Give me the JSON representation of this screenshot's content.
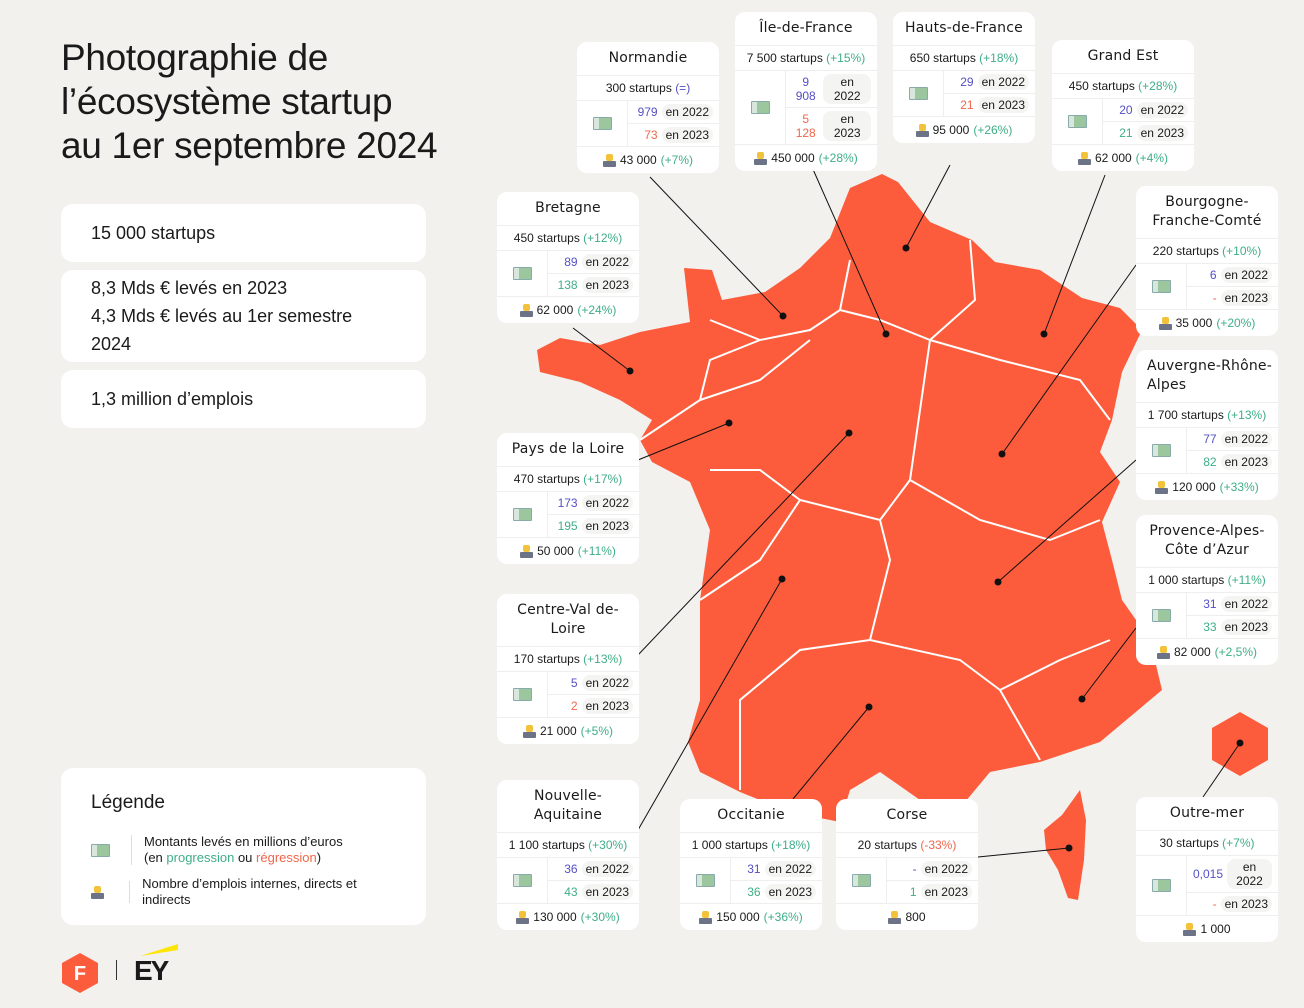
{
  "title_lines": [
    "Photographie de",
    "l’écosystème startup",
    "au 1er septembre 2024"
  ],
  "stats": [
    "15 000 startups",
    "8,3 Mds € levés en 2023",
    "4,3 Mds € levés au 1er semestre 2024",
    "1,3 million d’emplois"
  ],
  "legend": {
    "title": "Légende",
    "money_line1": "Montants levés en millions d’euros",
    "money_open": "(en ",
    "progression": "progression",
    "ou": " ou ",
    "regression": "régression",
    "money_close": ")",
    "jobs": "Nombre d’emplois internes, directs et indirects"
  },
  "colors": {
    "map": "#fd5c3c",
    "progression": "#3fae86",
    "regression": "#f0664a",
    "year_2022": "#5450c4"
  },
  "icons": {
    "money": "money-bill-icon",
    "jobs": "worker-laptop-icon"
  },
  "logos": {
    "left": "FrenchTech / F logo",
    "right": "EY"
  },
  "year_2022_label": "en 2022",
  "year_2023_label": "en 2023",
  "regions": [
    {
      "key": "normandie",
      "name": "Normandie",
      "startups": "300 startups",
      "startups_change": "(=)",
      "startups_trend": "neutral",
      "m2022": "979",
      "m2023": "73",
      "m2023_trend": "down",
      "jobs": "43 000",
      "jobs_change": "(+7%)"
    },
    {
      "key": "ile-de-france",
      "name": "Île-de-France",
      "startups": "7 500 startups",
      "startups_change": "(+15%)",
      "startups_trend": "up",
      "m2022": "9 908",
      "m2023": "5 128",
      "m2023_trend": "down",
      "jobs": "450 000",
      "jobs_change": "(+28%)"
    },
    {
      "key": "hauts-de-france",
      "name": "Hauts-de-France",
      "startups": "650 startups",
      "startups_change": "(+18%)",
      "startups_trend": "up",
      "m2022": "29",
      "m2023": "21",
      "m2023_trend": "down",
      "jobs": "95 000",
      "jobs_change": "(+26%)"
    },
    {
      "key": "grand-est",
      "name": "Grand Est",
      "startups": "450 startups",
      "startups_change": "(+28%)",
      "startups_trend": "up",
      "m2022": "20",
      "m2023": "21",
      "m2023_trend": "up",
      "jobs": "62 000",
      "jobs_change": "(+4%)"
    },
    {
      "key": "bretagne",
      "name": "Bretagne",
      "startups": "450 startups",
      "startups_change": "(+12%)",
      "startups_trend": "up",
      "m2022": "89",
      "m2023": "138",
      "m2023_trend": "up",
      "jobs": "62 000",
      "jobs_change": "(+24%)"
    },
    {
      "key": "bourgogne-franche-comte",
      "name": "Bourgogne-Franche-Comté",
      "startups": "220 startups",
      "startups_change": "(+10%)",
      "startups_trend": "up",
      "m2022": "6",
      "m2023": "-",
      "m2023_trend": "down",
      "jobs": "35 000",
      "jobs_change": "(+20%)"
    },
    {
      "key": "pays-de-la-loire",
      "name": "Pays de la Loire",
      "startups": "470 startups",
      "startups_change": "(+17%)",
      "startups_trend": "up",
      "m2022": "173",
      "m2023": "195",
      "m2023_trend": "up",
      "jobs": "50 000",
      "jobs_change": "(+11%)"
    },
    {
      "key": "auvergne-rhone-alpes",
      "name": "Auvergne-Rhône-Alpes",
      "startups": "1 700 startups",
      "startups_change": "(+13%)",
      "startups_trend": "up",
      "m2022": "77",
      "m2023": "82",
      "m2023_trend": "up",
      "jobs": "120 000",
      "jobs_change": "(+33%)"
    },
    {
      "key": "centre-val-de-loire",
      "name": "Centre-Val de-Loire",
      "startups": "170 startups",
      "startups_change": "(+13%)",
      "startups_trend": "up",
      "m2022": "5",
      "m2023": "2",
      "m2023_trend": "down",
      "jobs": "21 000",
      "jobs_change": "(+5%)"
    },
    {
      "key": "paca",
      "name": "Provence-Alpes-Côte d’Azur",
      "startups": "1 000 startups",
      "startups_change": "(+11%)",
      "startups_trend": "up",
      "m2022": "31",
      "m2023": "33",
      "m2023_trend": "up",
      "jobs": "82 000",
      "jobs_change": "(+2,5%)"
    },
    {
      "key": "nouvelle-aquitaine",
      "name": "Nouvelle-Aquitaine",
      "startups": "1 100 startups",
      "startups_change": "(+30%)",
      "startups_trend": "up",
      "m2022": "36",
      "m2023": "43",
      "m2023_trend": "up",
      "jobs": "130 000",
      "jobs_change": "(+30%)"
    },
    {
      "key": "occitanie",
      "name": "Occitanie",
      "startups": "1 000 startups",
      "startups_change": "(+18%)",
      "startups_trend": "up",
      "m2022": "31",
      "m2023": "36",
      "m2023_trend": "up",
      "jobs": "150 000",
      "jobs_change": "(+36%)"
    },
    {
      "key": "corse",
      "name": "Corse",
      "startups": "20 startups",
      "startups_change": "(-33%)",
      "startups_trend": "down",
      "m2022": "-",
      "m2023": "1",
      "m2023_trend": "up",
      "jobs": "800",
      "jobs_change": "",
      "jobs_trend": "neutral"
    },
    {
      "key": "outre-mer",
      "name": "Outre-mer",
      "startups": "30 startups",
      "startups_change": "(+7%)",
      "startups_trend": "up",
      "m2022": "0,015",
      "m2023": "-",
      "m2023_trend": "down",
      "jobs": "1 000",
      "jobs_change": ""
    }
  ]
}
